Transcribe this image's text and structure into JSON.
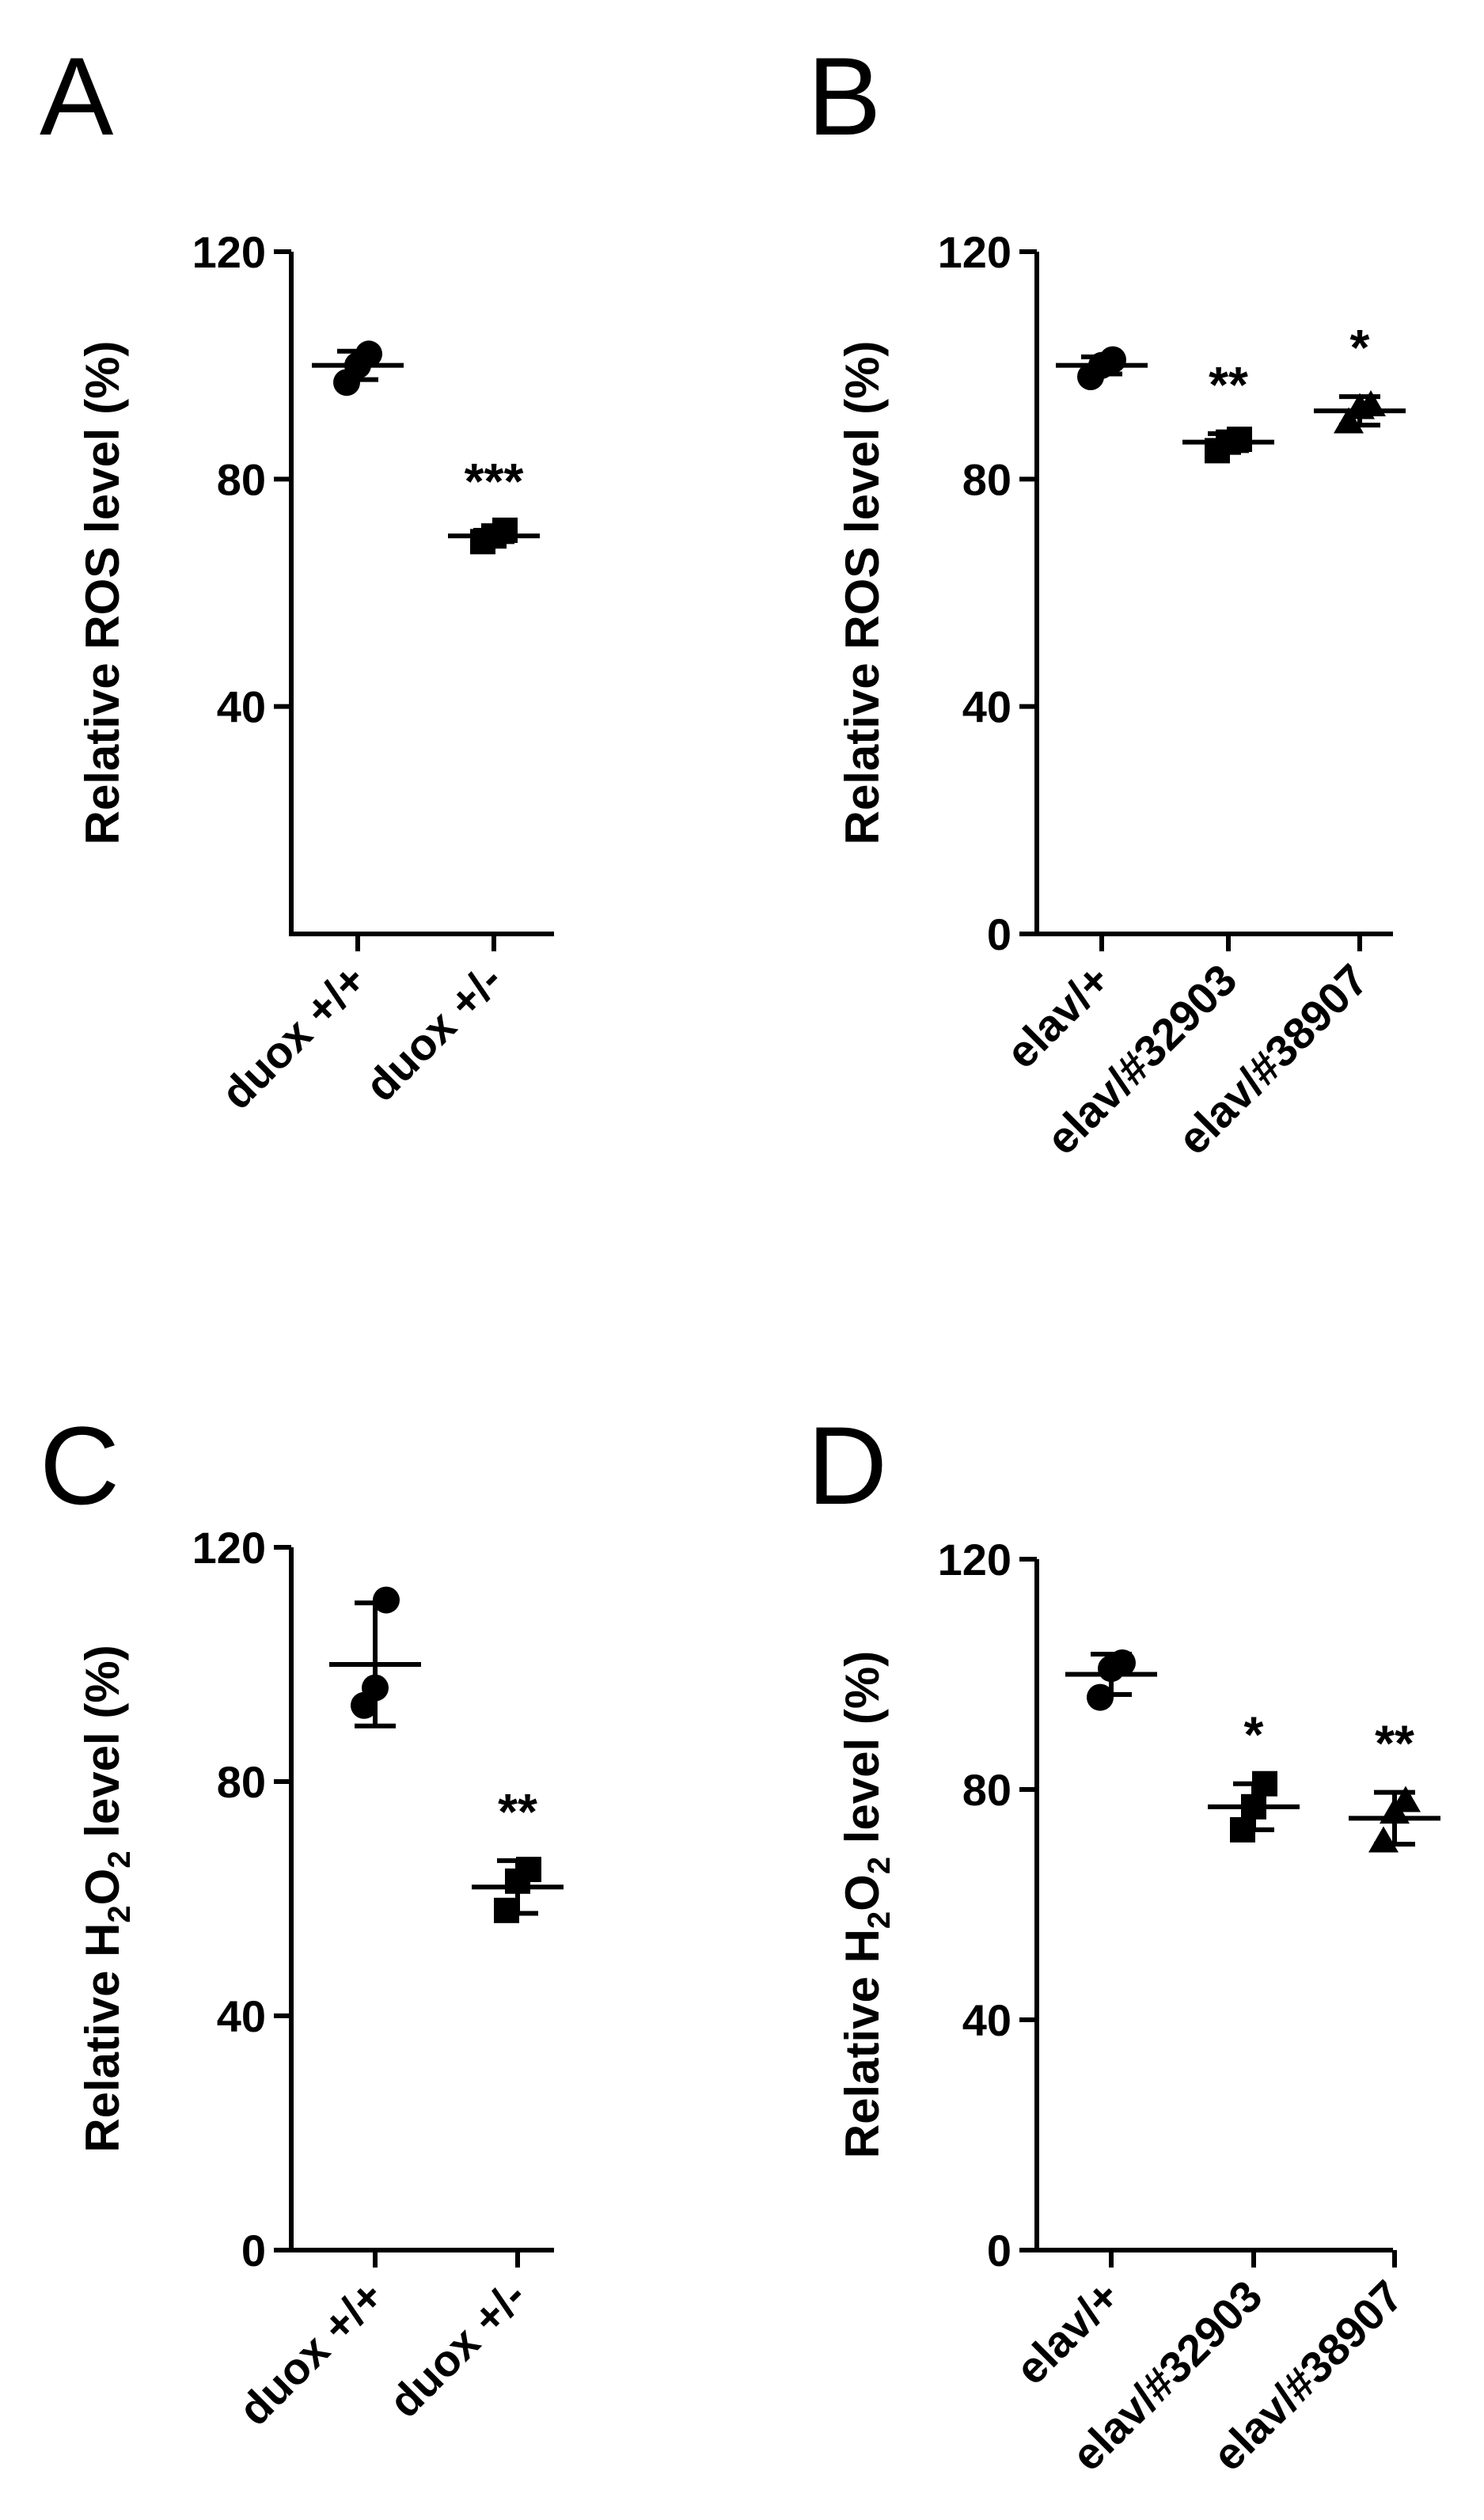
{
  "chart_data": [
    {
      "panel": "A",
      "type": "scatter",
      "ylabel": "Relative  ROS level (%)",
      "ylim": [
        0,
        120
      ],
      "yticks": [
        40,
        80,
        120
      ],
      "categories": [
        "duox +/+",
        "duox +/-"
      ],
      "markers": [
        "circle",
        "square"
      ],
      "points": [
        [
          97,
          100,
          102
        ],
        [
          69,
          70,
          71
        ]
      ],
      "means": [
        100,
        70
      ],
      "sd": [
        2.5,
        1.0
      ],
      "significance": [
        "",
        "***"
      ],
      "grid": false
    },
    {
      "panel": "B",
      "type": "scatter",
      "ylabel": "Relative ROS level (%)",
      "ylim": [
        0,
        120
      ],
      "yticks": [
        0,
        40,
        80,
        120
      ],
      "categories": [
        "elav/+",
        "elav/#32903",
        "elav/#38907"
      ],
      "markers": [
        "circle",
        "square",
        "triangle"
      ],
      "points": [
        [
          98,
          100,
          101
        ],
        [
          85,
          86.5,
          87
        ],
        [
          90,
          92.5,
          93
        ]
      ],
      "means": [
        100,
        86.5,
        92
      ],
      "sd": [
        1.5,
        1.5,
        2.5
      ],
      "significance": [
        "",
        "**",
        "*"
      ],
      "grid": false
    },
    {
      "panel": "C",
      "type": "scatter",
      "ylabel": "Relative H2O2 level (%)",
      "ylim": [
        0,
        120
      ],
      "yticks": [
        0,
        40,
        80,
        120
      ],
      "categories": [
        "duox +/+",
        "duox +/-"
      ],
      "markers": [
        "circle",
        "square"
      ],
      "points": [
        [
          93,
          96,
          111
        ],
        [
          58,
          63,
          65
        ]
      ],
      "means": [
        100,
        62
      ],
      "sd": [
        10.5,
        4.5
      ],
      "significance": [
        "",
        "**"
      ],
      "grid": false
    },
    {
      "panel": "D",
      "type": "scatter",
      "ylabel": "Relative H2O2 level (%)",
      "ylim": [
        0,
        120
      ],
      "yticks": [
        0,
        40,
        80,
        120
      ],
      "categories": [
        "elav/+",
        "elav/#32903",
        "elav/#38907"
      ],
      "markers": [
        "circle",
        "square",
        "triangle"
      ],
      "points": [
        [
          96,
          101,
          102
        ],
        [
          73,
          77,
          81
        ],
        [
          71,
          76,
          78
        ]
      ],
      "means": [
        100,
        77,
        75
      ],
      "sd": [
        3.5,
        4.0,
        4.5
      ],
      "significance": [
        "",
        "*",
        "**"
      ],
      "grid": false
    }
  ]
}
